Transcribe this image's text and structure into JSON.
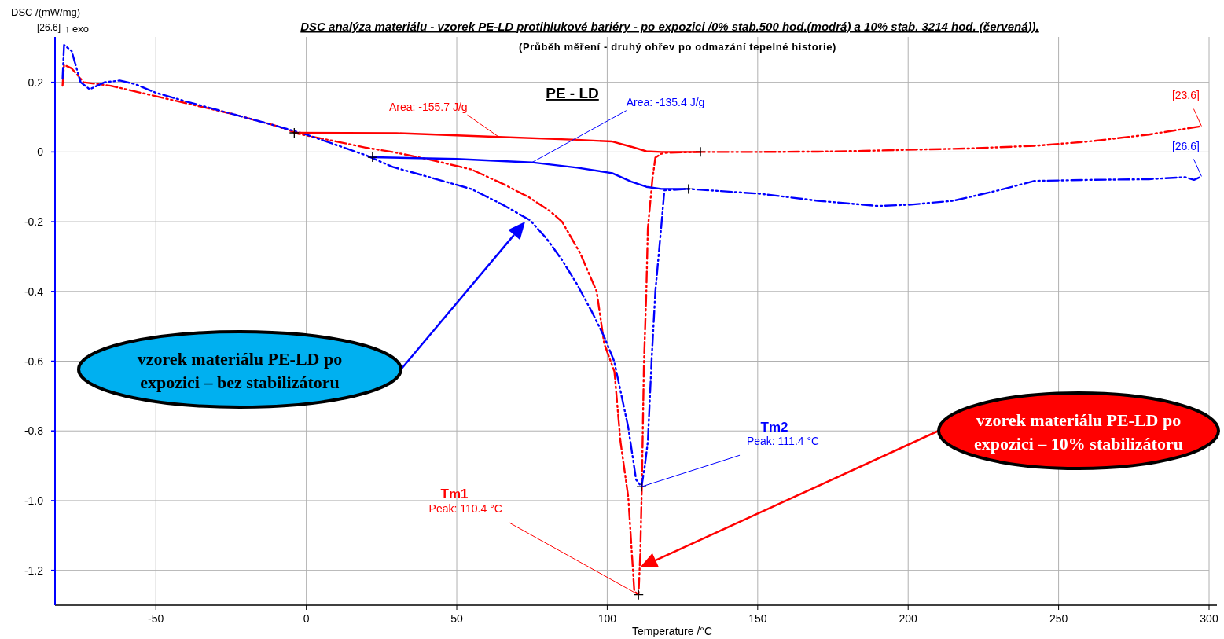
{
  "chart_data": {
    "type": "line",
    "title": "DSC analýza materiálu - vzorek PE-LD protihlukové bariéry - po expozici /0% stab.500 hod.(modrá) a 10% stab. 3214 hod. (červená)).",
    "subtitle": "(Průběh měření - druhý ohřev po odmazání tepelné historie)",
    "xlabel": "Temperature /°C",
    "ylabel": "DSC /(mW/mg)",
    "xlim": [
      -83.5,
      300
    ],
    "xticks": [
      -50,
      0,
      50,
      100,
      150,
      200,
      250,
      300
    ],
    "ylim": [
      -1.3,
      0.33
    ],
    "yticks": [
      0.2,
      0,
      -0.2,
      -0.4,
      -0.6,
      -0.8,
      {
        "value": -1,
        "label": "-1.0"
      },
      -1.2
    ],
    "grid": true,
    "marker": "none",
    "series": [
      {
        "color": "#ff0000",
        "line_style": "dashed",
        "x": [
          -81,
          -80.5,
          -78,
          -74,
          -65,
          -55,
          -40,
          -25,
          -10,
          -2.6,
          10,
          20,
          28.7,
          40,
          54.8,
          65,
          74,
          81,
          85,
          91,
          96.5,
          99,
          102.4,
          104.4,
          107,
          109,
          110.4,
          111,
          111.5,
          112.2,
          113,
          113.5,
          115,
          116,
          118,
          120,
          131,
          150,
          170,
          185,
          203.5,
          220,
          242.6,
          260,
          280,
          297.5
        ],
        "values": [
          0.19,
          0.25,
          0.24,
          0.2,
          0.19,
          0.17,
          0.14,
          0.11,
          0.075,
          0.052,
          0.03,
          0.012,
          0,
          -0.02,
          -0.05,
          -0.09,
          -0.13,
          -0.17,
          -0.2,
          -0.29,
          -0.4,
          -0.55,
          -0.63,
          -0.83,
          -0.99,
          -1.26,
          -1.27,
          -1.15,
          -0.96,
          -0.61,
          -0.4,
          -0.22,
          -0.08,
          -0.016,
          -0.005,
          -0.002,
          0,
          0,
          0.001,
          0.003,
          0.007,
          0.01,
          0.018,
          0.03,
          0.05,
          0.074
        ]
      },
      {
        "color": "#0000ff",
        "line_style": "dashed",
        "x": [
          -81,
          -80.5,
          -78,
          -75,
          -72,
          -67,
          -62,
          -57,
          -50,
          -40,
          -25,
          -10,
          0,
          10,
          20,
          28.7,
          40,
          54.8,
          65,
          74.4,
          80,
          85,
          90,
          95,
          99,
          102.3,
          107,
          109.6,
          111.4,
          112.5,
          113.5,
          114.8,
          116,
          118,
          119,
          127,
          151,
          170,
          190,
          201,
          215,
          230,
          242,
          260,
          280,
          292,
          295,
          297.5
        ],
        "values": [
          0.21,
          0.307,
          0.29,
          0.2,
          0.18,
          0.2,
          0.205,
          0.195,
          0.17,
          0.145,
          0.11,
          0.075,
          0.05,
          0.02,
          -0.01,
          -0.043,
          -0.07,
          -0.106,
          -0.15,
          -0.196,
          -0.25,
          -0.31,
          -0.38,
          -0.46,
          -0.53,
          -0.6,
          -0.79,
          -0.94,
          -0.96,
          -0.9,
          -0.83,
          -0.59,
          -0.4,
          -0.21,
          -0.11,
          -0.106,
          -0.12,
          -0.14,
          -0.155,
          -0.151,
          -0.14,
          -0.11,
          -0.083,
          -0.08,
          -0.078,
          -0.072,
          -0.08,
          -0.07
        ]
      },
      {
        "color": "#ff0000",
        "line_style": "solid",
        "x": [
          -4,
          30,
          64,
          90,
          101.7,
          108,
          113,
          118,
          131
        ],
        "values": [
          0.055,
          0.054,
          0.043,
          0.035,
          0.03,
          0.015,
          0.002,
          0,
          0
        ]
      },
      {
        "color": "#0000ff",
        "line_style": "solid",
        "x": [
          22,
          50,
          75,
          90,
          101.7,
          108,
          113,
          118,
          127
        ],
        "values": [
          -0.015,
          -0.02,
          -0.03,
          -0.045,
          -0.061,
          -0.085,
          -0.1,
          -0.106,
          -0.106
        ]
      },
      {
        "type": "scatter",
        "color": "#000000",
        "marker": "cross",
        "x": [
          -4,
          22,
          131,
          127,
          110.4,
          111.4
        ],
        "values": [
          0.055,
          -0.015,
          0,
          -0.106,
          -1.27,
          -0.96
        ]
      }
    ],
    "annotations": [
      "[26.6]",
      "↑ exo",
      "PE - LD",
      {
        "text": "Area: -155.7 J/g",
        "x": 64,
        "y": 0.043
      },
      {
        "text": "Area: -135.4 J/g",
        "x": 75,
        "y": -0.03
      },
      "Tm1",
      {
        "text": "Peak: 110.4 °C",
        "x": 110.4,
        "y": -1.27
      },
      "Tm2",
      {
        "text": "Peak: 111.4 °C",
        "x": 111.4,
        "y": -0.96
      },
      {
        "text": "[23.6]",
        "x": 297.5,
        "y": 0.074
      },
      {
        "text": "[26.6]",
        "x": 297.5,
        "y": -0.07
      },
      "vzorek materiálu PE-LD po expozici – bez stabilizátoru",
      "vzorek materiálu PE-LD po expozici – 10% stabilizátoru"
    ]
  }
}
